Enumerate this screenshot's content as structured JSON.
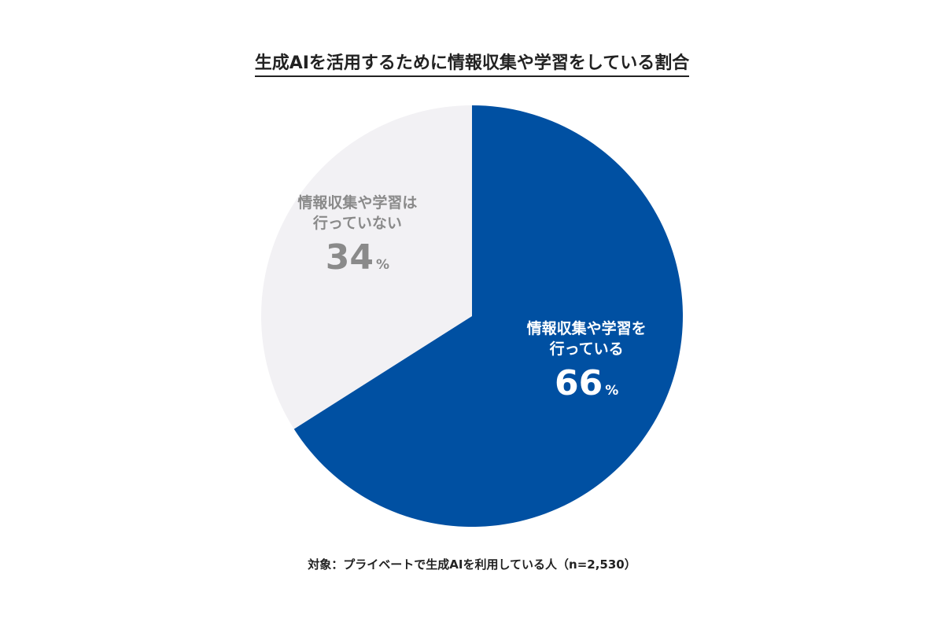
{
  "chart_data": {
    "type": "pie",
    "title": "生成AIを活用するために情報収集や学習をしている割合",
    "slices": [
      {
        "label_lines": [
          "情報収集や学習を",
          "行っている"
        ],
        "value": 66,
        "value_text": "66",
        "unit": "%",
        "color": "#0050a2",
        "label_color": "#ffffff"
      },
      {
        "label_lines": [
          "情報収集や学習は",
          "行っていない"
        ],
        "value": 34,
        "value_text": "34",
        "unit": "%",
        "color": "#f2f1f4",
        "label_color": "#8a8a8a"
      }
    ],
    "start": "12 o'clock",
    "direction": "clockwise",
    "footnote": "対象：プライベートで生成AIを利用している人（n=2,530）"
  }
}
